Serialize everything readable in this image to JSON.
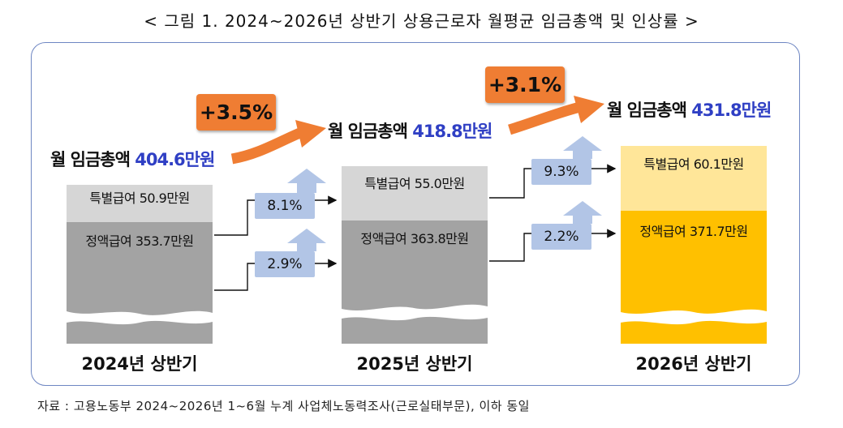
{
  "figure_title": "< 그림 1. 2024~2026년 상반기 상용근로자 월평균 임금총액 및 인상률 >",
  "columns": [
    {
      "period": "2024년 상반기",
      "total_label": "월 임금총액",
      "total_value": "404.6만원",
      "special_label": "특별급여 50.9만원",
      "regular_label": "정액급여 353.7만원",
      "colors": {
        "special": "#d6d6d6",
        "regular": "#a3a3a3"
      }
    },
    {
      "period": "2025년 상반기",
      "total_label": "월 임금총액",
      "total_value": "418.8만원",
      "special_label": "특별급여 55.0만원",
      "regular_label": "정액급여 363.8만원",
      "colors": {
        "special": "#d6d6d6",
        "regular": "#a3a3a3"
      }
    },
    {
      "period": "2026년 상반기",
      "total_label": "월 임금총액",
      "total_value": "431.8만원",
      "special_label": "특별급여 60.1만원",
      "regular_label": "정액급여 371.7만원",
      "colors": {
        "special": "#ffe699",
        "regular": "#ffc000"
      }
    }
  ],
  "total_growth": [
    "+3.5%",
    "+3.1%"
  ],
  "component_growth": [
    {
      "special": "8.1%",
      "regular": "2.9%"
    },
    {
      "special": "9.3%",
      "regular": "2.2%"
    }
  ],
  "source_note": "자료 : 고용노동부 2024~2026년 1~6월 누계 사업체노동력조사(근로실태부문), 이하 동일",
  "colors": {
    "border": "#6e86c2",
    "badge": "#ef7d33",
    "arrow_orange": "#ef7d33",
    "rate_box": "#b2c5e6",
    "total_amount_text": "#2f3fc4"
  },
  "icons": [
    "curved-arrow-icon",
    "up-arrow-icon",
    "right-arrow-icon"
  ]
}
